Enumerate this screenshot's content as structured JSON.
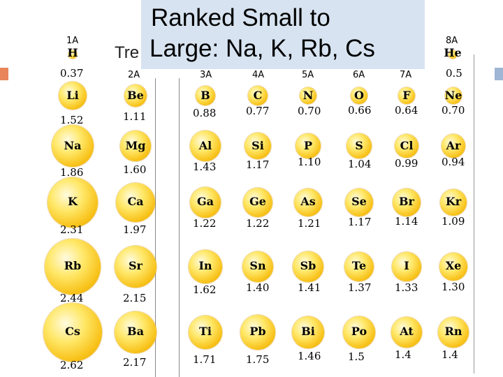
{
  "title": {
    "line1": "Ranked Small to",
    "line2": "Large:  Na, K, Rb, Cs"
  },
  "trends_partial": "Tre",
  "groups": [
    "1A",
    "2A",
    "3A",
    "4A",
    "5A",
    "6A",
    "7A",
    "8A"
  ],
  "elements": [
    {
      "symbol": "H",
      "radius": "0.37"
    },
    {
      "symbol": "He",
      "radius": "0.5"
    },
    {
      "symbol": "Li",
      "radius": "1.52"
    },
    {
      "symbol": "Be",
      "radius": "1.11"
    },
    {
      "symbol": "B",
      "radius": "0.88"
    },
    {
      "symbol": "C",
      "radius": "0.77"
    },
    {
      "symbol": "N",
      "radius": "0.70"
    },
    {
      "symbol": "O",
      "radius": "0.66"
    },
    {
      "symbol": "F",
      "radius": "0.64"
    },
    {
      "symbol": "Ne",
      "radius": "0.70"
    },
    {
      "symbol": "Na",
      "radius": "1.86"
    },
    {
      "symbol": "Mg",
      "radius": "1.60"
    },
    {
      "symbol": "Al",
      "radius": "1.43"
    },
    {
      "symbol": "Si",
      "radius": "1.17"
    },
    {
      "symbol": "P",
      "radius": "1.10"
    },
    {
      "symbol": "S",
      "radius": "1.04"
    },
    {
      "symbol": "Cl",
      "radius": "0.99"
    },
    {
      "symbol": "Ar",
      "radius": "0.94"
    },
    {
      "symbol": "K",
      "radius": "2.31"
    },
    {
      "symbol": "Ca",
      "radius": "1.97"
    },
    {
      "symbol": "Ga",
      "radius": "1.22"
    },
    {
      "symbol": "Ge",
      "radius": "1.22"
    },
    {
      "symbol": "As",
      "radius": "1.21"
    },
    {
      "symbol": "Se",
      "radius": "1.17"
    },
    {
      "symbol": "Br",
      "radius": "1.14"
    },
    {
      "symbol": "Kr",
      "radius": "1.09"
    },
    {
      "symbol": "Rb",
      "radius": "2.44"
    },
    {
      "symbol": "Sr",
      "radius": "2.15"
    },
    {
      "symbol": "In",
      "radius": "1.62"
    },
    {
      "symbol": "Sn",
      "radius": "1.40"
    },
    {
      "symbol": "Sb",
      "radius": "1.41"
    },
    {
      "symbol": "Te",
      "radius": "1.37"
    },
    {
      "symbol": "I",
      "radius": "1.33"
    },
    {
      "symbol": "Xe",
      "radius": "1.30"
    },
    {
      "symbol": "Cs",
      "radius": "2.62"
    },
    {
      "symbol": "Ba",
      "radius": "2.17"
    },
    {
      "symbol": "Ti",
      "radius": "1.71"
    },
    {
      "symbol": "Pb",
      "radius": "1.75"
    },
    {
      "symbol": "Bi",
      "radius": "1.46"
    },
    {
      "symbol": "Po",
      "radius": "1.5"
    },
    {
      "symbol": "At",
      "radius": "1.4"
    },
    {
      "symbol": "Rn",
      "radius": "1.4"
    }
  ]
}
